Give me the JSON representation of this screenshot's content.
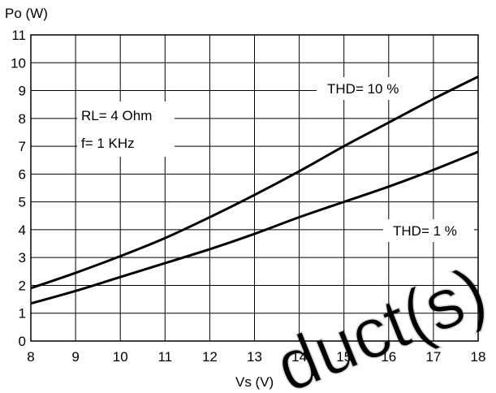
{
  "chart_data": {
    "type": "line",
    "title": "",
    "xlabel": "Vs (V)",
    "ylabel": "Po (W)",
    "xlim": [
      8,
      18
    ],
    "ylim": [
      0,
      11
    ],
    "x_ticks": [
      "8",
      "9",
      "10",
      "11",
      "12",
      "13",
      "14",
      "15",
      "16",
      "17",
      "18"
    ],
    "y_ticks": [
      "0",
      "1",
      "2",
      "3",
      "4",
      "5",
      "6",
      "7",
      "8",
      "9",
      "10",
      "11"
    ],
    "grid": true,
    "series": [
      {
        "name": "THD= 10 %",
        "x": [
          8,
          9,
          10,
          11,
          12,
          13,
          14,
          15,
          16,
          17,
          18
        ],
        "y": [
          1.9,
          2.45,
          3.05,
          3.7,
          4.45,
          5.25,
          6.1,
          7.0,
          7.85,
          8.7,
          9.5
        ]
      },
      {
        "name": "THD= 1 %",
        "x": [
          8,
          9,
          10,
          11,
          12,
          13,
          14,
          15,
          16,
          17,
          18
        ],
        "y": [
          1.35,
          1.8,
          2.3,
          2.8,
          3.3,
          3.85,
          4.45,
          5.0,
          5.55,
          6.15,
          6.8
        ]
      }
    ],
    "annotations": {
      "conditions": [
        "RL= 4 Ohm",
        "f= 1 KHz"
      ]
    }
  },
  "watermark": "duct(s)"
}
